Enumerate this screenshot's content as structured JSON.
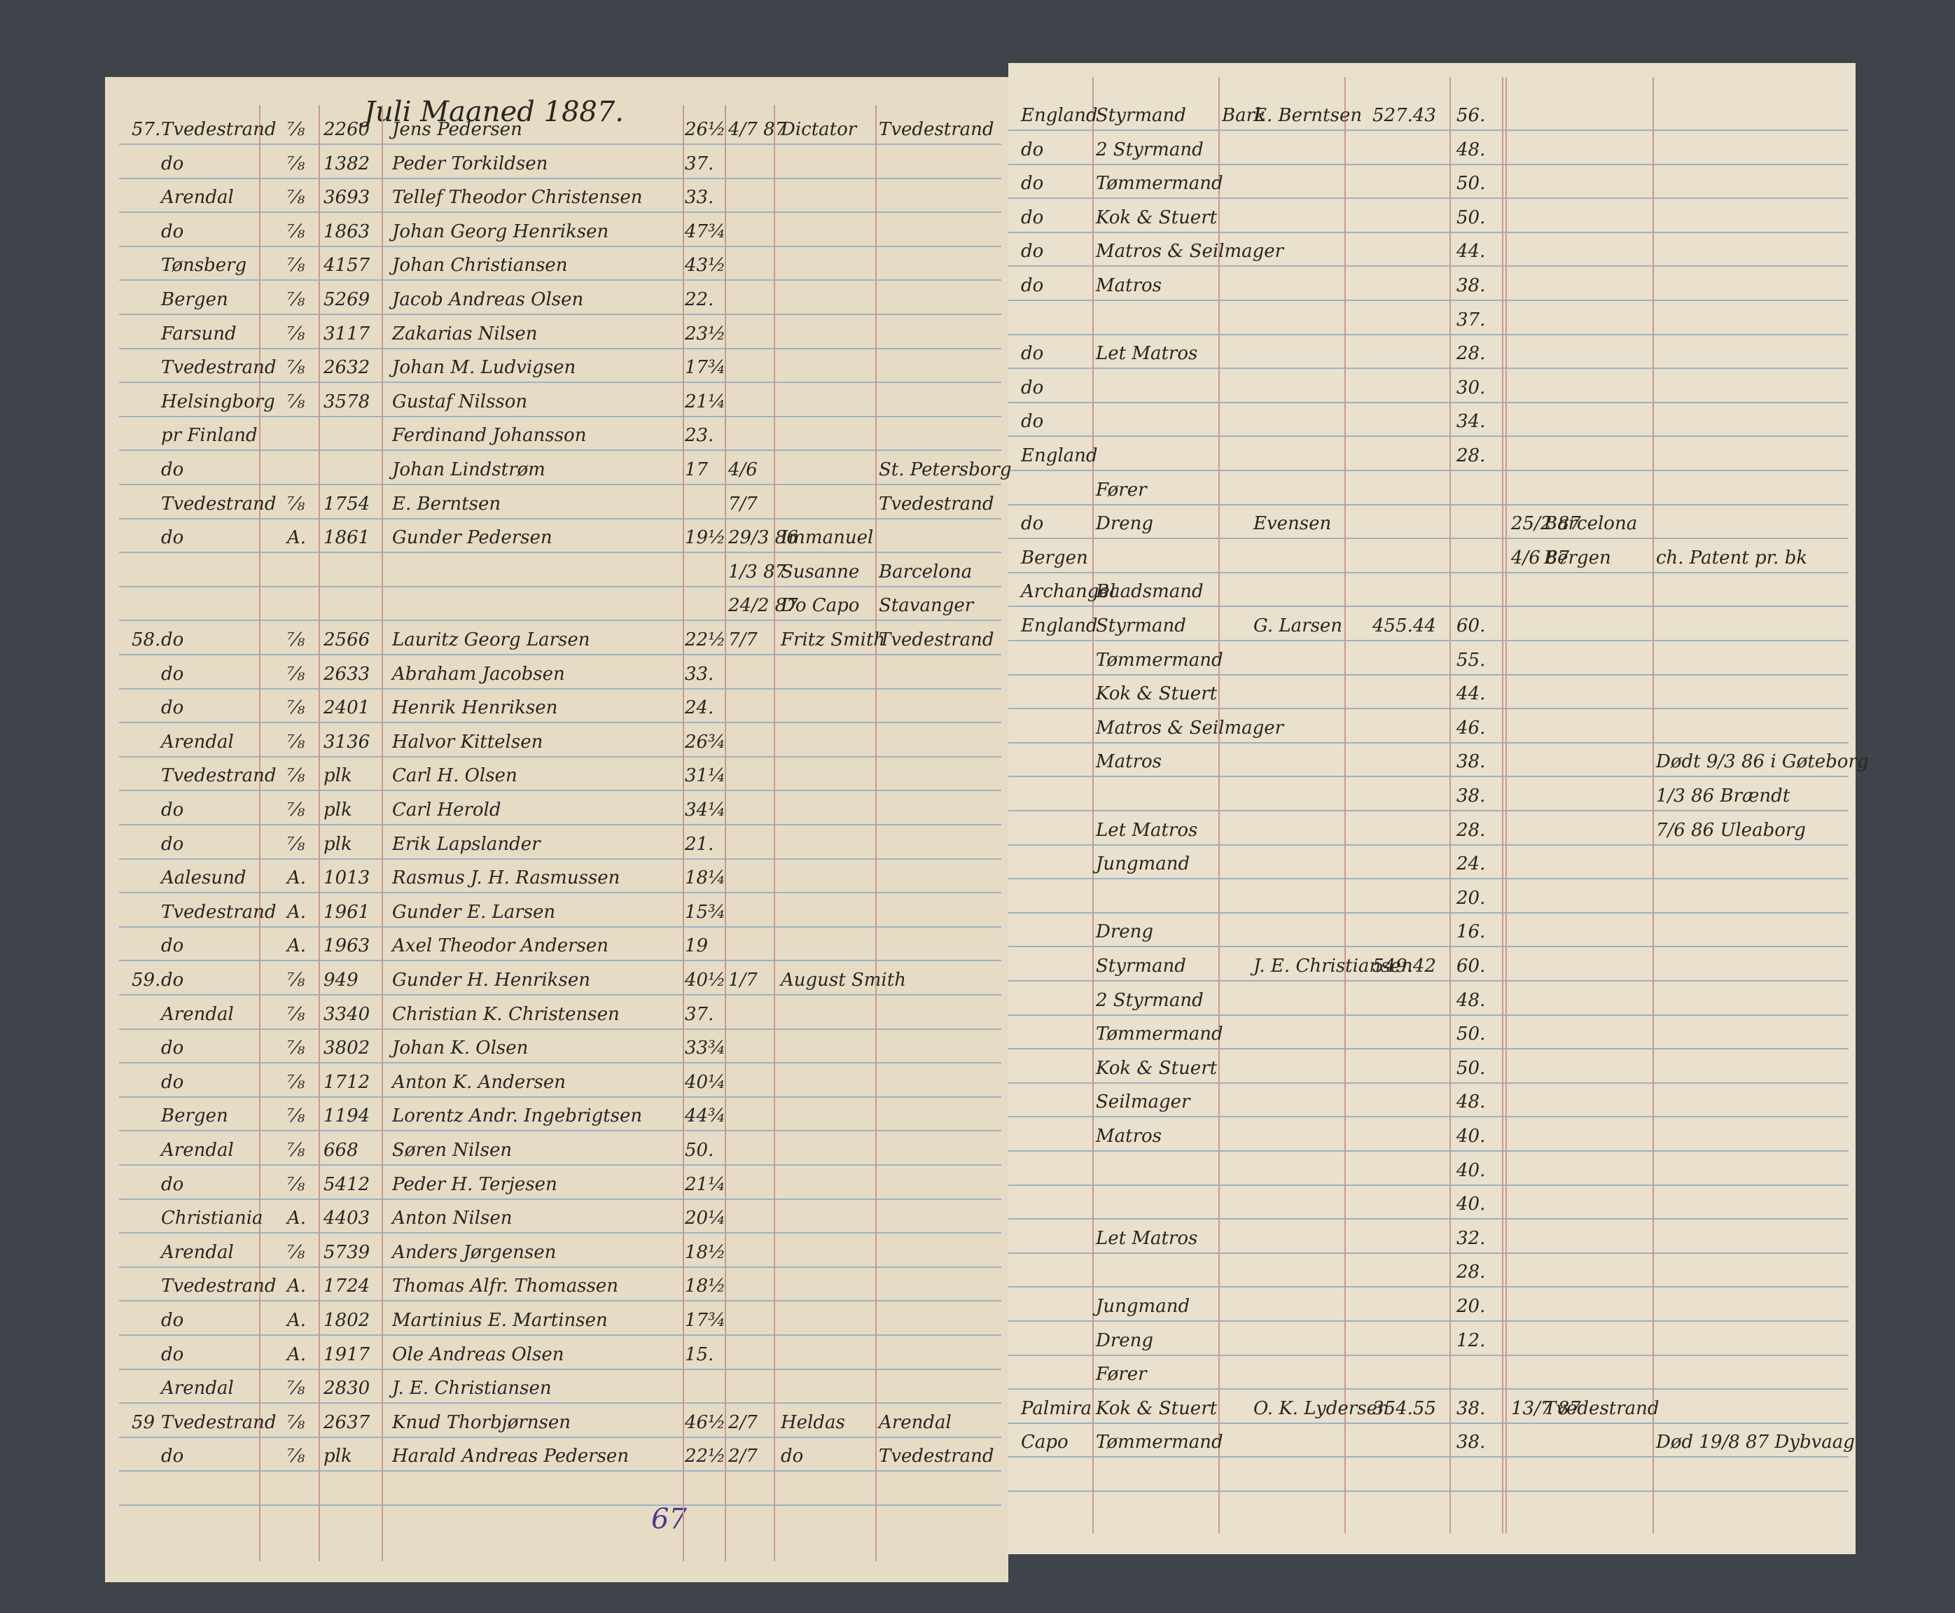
{
  "left_page": {
    "header": "Juli Maaned 1887.",
    "page_number": "67",
    "rows": [
      {
        "no": "57.",
        "place": "Tvedestrand",
        "cls": "⅞",
        "num": "2260",
        "name": "Jens Pedersen",
        "age": "26½",
        "date": "4/7 87",
        "ship": "Dictator",
        "dest": "Tvedestrand"
      },
      {
        "place": "do",
        "cls": "⅞",
        "num": "1382",
        "name": "Peder Torkildsen",
        "age": "37."
      },
      {
        "place": "Arendal",
        "cls": "⅞",
        "num": "3693",
        "name": "Tellef Theodor Christensen",
        "age": "33."
      },
      {
        "place": "do",
        "cls": "⅞",
        "num": "1863",
        "name": "Johan Georg Henriksen",
        "age": "47¾"
      },
      {
        "place": "Tønsberg",
        "cls": "⅞",
        "num": "4157",
        "name": "Johan Christiansen",
        "age": "43½"
      },
      {
        "place": "Bergen",
        "cls": "⅞",
        "num": "5269",
        "name": "Jacob Andreas Olsen",
        "age": "22."
      },
      {
        "place": "Farsund",
        "cls": "⅞",
        "num": "3117",
        "name": "Zakarias Nilsen",
        "age": "23½"
      },
      {
        "place": "Tvedestrand",
        "cls": "⅞",
        "num": "2632",
        "name": "Johan M. Ludvigsen",
        "age": "17¾"
      },
      {
        "place": "Helsingborg",
        "cls": "⅞",
        "num": "3578",
        "name": "Gustaf Nilsson",
        "age": "21¼"
      },
      {
        "place": "pr Finland",
        "name": "Ferdinand Johansson",
        "age": "23."
      },
      {
        "place": "do",
        "name": "Johan Lindstrøm",
        "age": "17",
        "date": "4/6",
        "dest": "St. Petersborg"
      },
      {
        "place": "Tvedestrand",
        "cls": "⅞",
        "num": "1754",
        "name": "E. Berntsen",
        "date": "7/7",
        "dest": "Tvedestrand"
      },
      {
        "place": "do",
        "cls": "A.",
        "num": "1861",
        "name": "Gunder Pedersen",
        "age": "19½",
        "date": "29/3 86",
        "ship": "Immanuel"
      },
      {
        "date": "1/3 87",
        "ship": "Susanne",
        "dest": "Barcelona"
      },
      {
        "date": "24/2 87",
        "ship": "Do Capo",
        "dest": "Stavanger"
      },
      {
        "no": "58.",
        "place": "do",
        "cls": "⅞",
        "num": "2566",
        "name": "Lauritz Georg Larsen",
        "age": "22½",
        "date": "7/7",
        "ship": "Fritz Smith",
        "dest": "Tvedestrand"
      },
      {
        "place": "do",
        "cls": "⅞",
        "num": "2633",
        "name": "Abraham Jacobsen",
        "age": "33."
      },
      {
        "place": "do",
        "cls": "⅞",
        "num": "2401",
        "name": "Henrik Henriksen",
        "age": "24."
      },
      {
        "place": "Arendal",
        "cls": "⅞",
        "num": "3136",
        "name": "Halvor Kittelsen",
        "age": "26¾"
      },
      {
        "place": "Tvedestrand",
        "cls": "⅞",
        "num": "plk",
        "name": "Carl H. Olsen",
        "age": "31¼"
      },
      {
        "place": "do",
        "cls": "⅞",
        "num": "plk",
        "name": "Carl Herold",
        "age": "34¼"
      },
      {
        "place": "do",
        "cls": "⅞",
        "num": "plk",
        "name": "Erik Lapslander",
        "age": "21."
      },
      {
        "place": "Aalesund",
        "cls": "A.",
        "num": "1013",
        "name": "Rasmus J. H. Rasmussen",
        "age": "18¼"
      },
      {
        "place": "Tvedestrand",
        "cls": "A.",
        "num": "1961",
        "name": "Gunder E. Larsen",
        "age": "15¾"
      },
      {
        "place": "do",
        "cls": "A.",
        "num": "1963",
        "name": "Axel Theodor Andersen",
        "age": "19"
      },
      {
        "no": "59.",
        "place": "do",
        "cls": "⅞",
        "num": "949",
        "name": "Gunder H. Henriksen",
        "age": "40½",
        "date": "1/7",
        "ship": "August Smith"
      },
      {
        "place": "Arendal",
        "cls": "⅞",
        "num": "3340",
        "name": "Christian K. Christensen",
        "age": "37."
      },
      {
        "place": "do",
        "cls": "⅞",
        "num": "3802",
        "name": "Johan K. Olsen",
        "age": "33¾"
      },
      {
        "place": "do",
        "cls": "⅞",
        "num": "1712",
        "name": "Anton K. Andersen",
        "age": "40¼"
      },
      {
        "place": "Bergen",
        "cls": "⅞",
        "num": "1194",
        "name": "Lorentz Andr. Ingebrigtsen",
        "age": "44¾"
      },
      {
        "place": "Arendal",
        "cls": "⅞",
        "num": "668",
        "name": "Søren Nilsen",
        "age": "50."
      },
      {
        "place": "do",
        "cls": "⅞",
        "num": "5412",
        "name": "Peder H. Terjesen",
        "age": "21¼"
      },
      {
        "place": "Christiania",
        "cls": "A.",
        "num": "4403",
        "name": "Anton Nilsen",
        "age": "20¼"
      },
      {
        "place": "Arendal",
        "cls": "⅞",
        "num": "5739",
        "name": "Anders Jørgensen",
        "age": "18½"
      },
      {
        "place": "Tvedestrand",
        "cls": "A.",
        "num": "1724",
        "name": "Thomas Alfr. Thomassen",
        "age": "18½"
      },
      {
        "place": "do",
        "cls": "A.",
        "num": "1802",
        "name": "Martinius E. Martinsen",
        "age": "17¾"
      },
      {
        "place": "do",
        "cls": "A.",
        "num": "1917",
        "name": "Ole Andreas Olsen",
        "age": "15."
      },
      {
        "place": "Arendal",
        "cls": "⅞",
        "num": "2830",
        "name": "J. E. Christiansen"
      },
      {
        "no": "59",
        "place": "Tvedestrand",
        "cls": "⅞",
        "num": "2637",
        "name": "Knud Thorbjørnsen",
        "age": "46½",
        "date": "2/7",
        "ship": "Heldas",
        "dest": "Arendal"
      },
      {
        "place": "do",
        "cls": "⅞",
        "num": "plk",
        "name": "Harald Andreas Pedersen",
        "age": "22½",
        "date": "2/7",
        "ship": "do",
        "dest": "Tvedestrand"
      }
    ]
  },
  "right_page": {
    "rows": [
      {
        "country": "England",
        "rank": "Styrmand",
        "kind": "Bark",
        "captain": "E. Berntsen",
        "tons": "527.43",
        "wage": "56."
      },
      {
        "country": "do",
        "rank": "2 Styrmand",
        "wage": "48."
      },
      {
        "country": "do",
        "rank": "Tømmermand",
        "wage": "50."
      },
      {
        "country": "do",
        "rank": "Kok & Stuert",
        "wage": "50."
      },
      {
        "country": "do",
        "rank": "Matros & Seilmager",
        "wage": "44."
      },
      {
        "country": "do",
        "rank": "Matros",
        "wage": "38."
      },
      {
        "wage": "37."
      },
      {
        "country": "do",
        "rank": "Let Matros",
        "wage": "28."
      },
      {
        "country": "do",
        "wage": "30."
      },
      {
        "country": "do",
        "wage": "34."
      },
      {
        "country": "England",
        "wage": "28."
      },
      {
        "rank": "Fører"
      },
      {
        "country": "do",
        "rank": "Dreng",
        "captain": "Evensen",
        "date": "25/2 87",
        "port": "Barcelona"
      },
      {
        "country": "Bergen",
        "date": "4/6 87",
        "port": "Bergen",
        "note": "ch. Patent pr. bk"
      },
      {
        "country": "Archangel",
        "rank": "Baadsmand"
      },
      {
        "country": "England",
        "rank": "Styrmand",
        "captain": "G. Larsen",
        "tons": "455.44",
        "wage": "60."
      },
      {
        "rank": "Tømmermand",
        "wage": "55."
      },
      {
        "rank": "Kok & Stuert",
        "wage": "44."
      },
      {
        "rank": "Matros & Seilmager",
        "wage": "46."
      },
      {
        "rank": "Matros",
        "wage": "38.",
        "note": "Dødt 9/3 86 i Gøteborg"
      },
      {
        "wage": "38.",
        "note": "1/3 86 Brændt"
      },
      {
        "rank": "Let Matros",
        "wage": "28.",
        "note": "7/6 86 Uleaborg"
      },
      {
        "rank": "Jungmand",
        "wage": "24."
      },
      {
        "wage": "20."
      },
      {
        "rank": "Dreng",
        "wage": "16."
      },
      {
        "rank": "Styrmand",
        "captain": "J. E. Christiansen",
        "tons": "549.42",
        "wage": "60."
      },
      {
        "rank": "2 Styrmand",
        "wage": "48."
      },
      {
        "rank": "Tømmermand",
        "wage": "50."
      },
      {
        "rank": "Kok & Stuert",
        "wage": "50."
      },
      {
        "rank": "Seilmager",
        "wage": "48."
      },
      {
        "rank": "Matros",
        "wage": "40."
      },
      {
        "wage": "40."
      },
      {
        "wage": "40."
      },
      {
        "rank": "Let Matros",
        "wage": "32."
      },
      {
        "wage": "28."
      },
      {
        "rank": "Jungmand",
        "wage": "20."
      },
      {
        "rank": "Dreng",
        "wage": "12."
      },
      {
        "rank": "Fører"
      },
      {
        "country": "Palmira",
        "rank": "Kok & Stuert",
        "captain": "O. K. Lydersen",
        "tons": "354.55",
        "wage": "38.",
        "date": "13/7 87",
        "port": "Tvedestrand"
      },
      {
        "country": "Capo",
        "rank": "Tømmermand",
        "wage": "38.",
        "note": "Død 19/8 87 Dybvaag"
      }
    ]
  }
}
